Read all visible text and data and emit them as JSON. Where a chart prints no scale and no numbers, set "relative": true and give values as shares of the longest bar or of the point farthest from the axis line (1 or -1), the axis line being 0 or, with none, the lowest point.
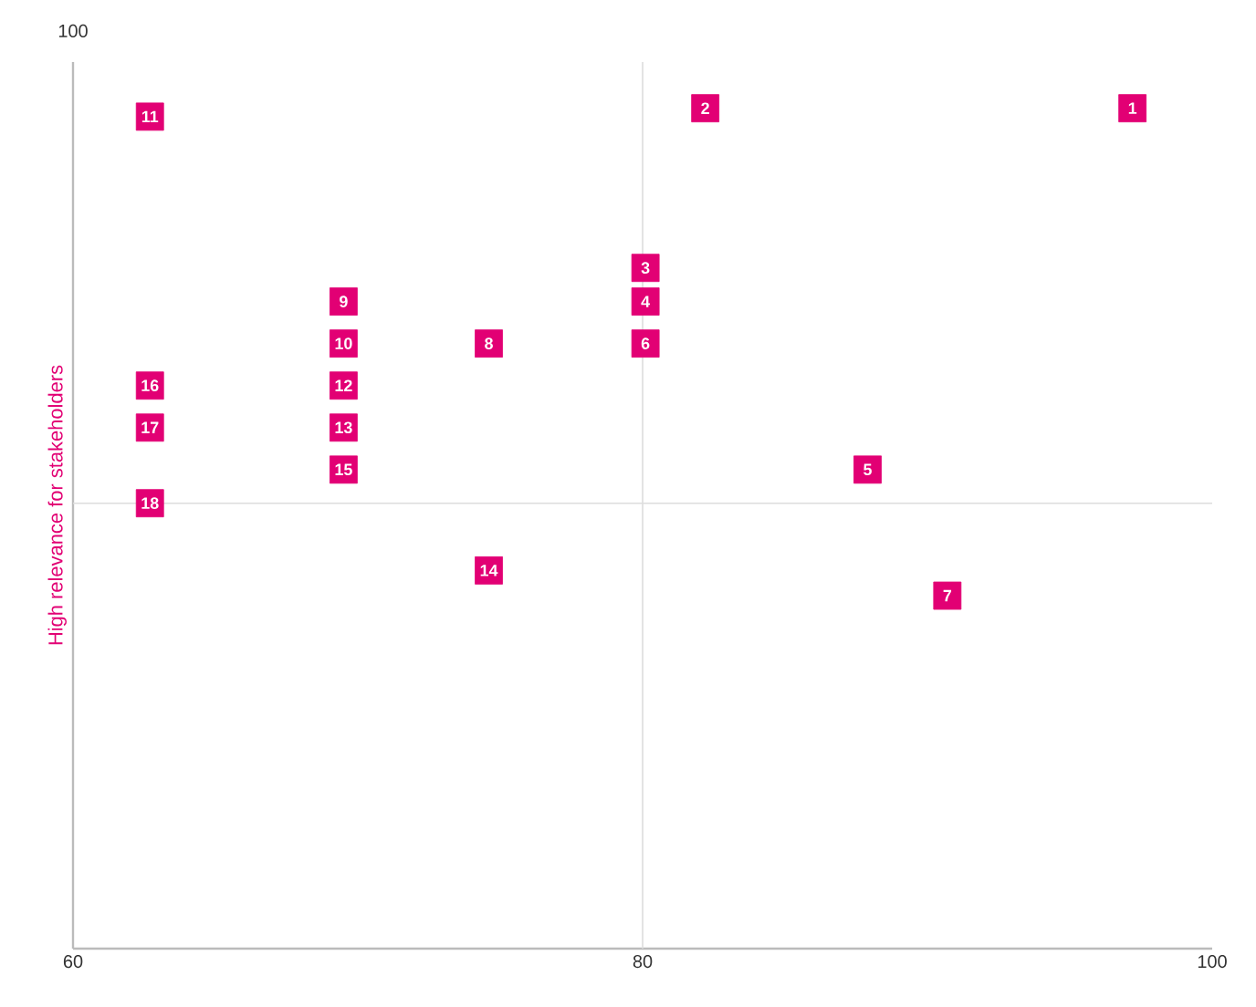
{
  "chart_data": {
    "type": "scatter",
    "ylabel": "High relevance for stakeholders",
    "relative": true,
    "xlim": [
      60,
      100
    ],
    "xticks": [
      60,
      80,
      100
    ],
    "marker": "square",
    "series": [
      {
        "color": "#e20074",
        "x": [
          97.2,
          82.2,
          80.1,
          80.1,
          87.9,
          80.1,
          90.7,
          74.6,
          69.5,
          69.5,
          62.7,
          69.5,
          69.5,
          74.6,
          69.5,
          62.7,
          62.7,
          62.7
        ],
        "values": [
          1.0,
          1.0,
          0.81,
          0.77,
          0.57,
          0.72,
          0.42,
          0.72,
          0.77,
          0.72,
          0.99,
          0.67,
          0.62,
          0.45,
          0.57,
          0.67,
          0.62,
          0.53
        ]
      }
    ],
    "ref_lines": [
      {
        "axis": "x",
        "value": 80,
        "color": "#dddddd"
      },
      {
        "axis": "y",
        "value": 0.53,
        "color": "#dddddd"
      }
    ],
    "annotations": [
      {
        "text": "1",
        "x": 97.2,
        "y": 1.0
      },
      {
        "text": "2",
        "x": 82.2,
        "y": 1.0
      },
      {
        "text": "3",
        "x": 80.1,
        "y": 0.81
      },
      {
        "text": "4",
        "x": 80.1,
        "y": 0.77
      },
      {
        "text": "5",
        "x": 87.9,
        "y": 0.57
      },
      {
        "text": "6",
        "x": 80.1,
        "y": 0.72
      },
      {
        "text": "7",
        "x": 90.7,
        "y": 0.42
      },
      {
        "text": "8",
        "x": 74.6,
        "y": 0.72
      },
      {
        "text": "9",
        "x": 69.5,
        "y": 0.77
      },
      {
        "text": "10",
        "x": 69.5,
        "y": 0.72
      },
      {
        "text": "11",
        "x": 62.7,
        "y": 0.99
      },
      {
        "text": "12",
        "x": 69.5,
        "y": 0.67
      },
      {
        "text": "13",
        "x": 69.5,
        "y": 0.62
      },
      {
        "text": "14",
        "x": 74.6,
        "y": 0.45
      },
      {
        "text": "15",
        "x": 69.5,
        "y": 0.57
      },
      {
        "text": "16",
        "x": 62.7,
        "y": 0.67
      },
      {
        "text": "17",
        "x": 62.7,
        "y": 0.62
      },
      {
        "text": "18",
        "x": 62.7,
        "y": 0.53
      },
      "100"
    ]
  }
}
